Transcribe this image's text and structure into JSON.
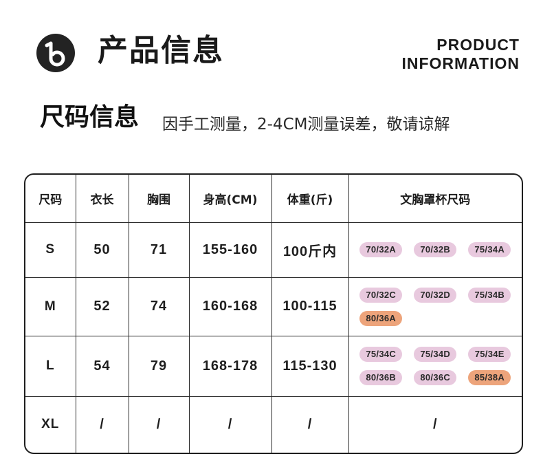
{
  "header": {
    "title": "产品信息",
    "en_line1": "PRODUCT",
    "en_line2": "INFORMATION",
    "logo_icon": "b-logo-icon"
  },
  "section": {
    "title": "尺码信息",
    "note": "因手工测量，2-4CM测量误差，敬请谅解"
  },
  "colors": {
    "cup_pink": "#e8c9de",
    "cup_orange": "#eda47b"
  },
  "table": {
    "headers": [
      "尺码",
      "衣长",
      "胸围",
      "身高(CM)",
      "体重(斤)",
      "文胸罩杯尺码"
    ],
    "rows": [
      {
        "size": "S",
        "length": "50",
        "bust": "71",
        "height": "155-160",
        "weight": "100斤内",
        "cups": [
          {
            "label": "70/32A",
            "color": "pink"
          },
          {
            "label": "70/32B",
            "color": "pink"
          },
          {
            "label": "75/34A",
            "color": "pink"
          }
        ]
      },
      {
        "size": "M",
        "length": "52",
        "bust": "74",
        "height": "160-168",
        "weight": "100-115",
        "cups": [
          {
            "label": "70/32C",
            "color": "pink"
          },
          {
            "label": "70/32D",
            "color": "pink"
          },
          {
            "label": "75/34B",
            "color": "pink"
          },
          {
            "label": "80/36A",
            "color": "orange"
          }
        ]
      },
      {
        "size": "L",
        "length": "54",
        "bust": "79",
        "height": "168-178",
        "weight": "115-130",
        "cups": [
          {
            "label": "75/34C",
            "color": "pink"
          },
          {
            "label": "75/34D",
            "color": "pink"
          },
          {
            "label": "75/34E",
            "color": "pink"
          },
          {
            "label": "80/36B",
            "color": "pink"
          },
          {
            "label": "80/36C",
            "color": "pink"
          },
          {
            "label": "85/38A",
            "color": "orange"
          }
        ]
      },
      {
        "size": "XL",
        "length": "/",
        "bust": "/",
        "height": "/",
        "weight": "/",
        "cups_text": "/"
      }
    ]
  }
}
